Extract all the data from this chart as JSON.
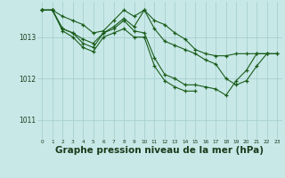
{
  "background_color": "#c8e8e8",
  "grid_color": "#a8d0d0",
  "line_color": "#1a5c1a",
  "xlabel": "Graphe pression niveau de la mer (hPa)",
  "xlabel_fontsize": 7.5,
  "ylim": [
    1010.55,
    1013.85
  ],
  "xlim": [
    -0.5,
    23.5
  ],
  "yticks": [
    1011,
    1012,
    1013
  ],
  "ytick_labels": [
    "1011",
    "1012",
    "1013"
  ],
  "xticks": [
    0,
    1,
    2,
    3,
    4,
    5,
    6,
    7,
    8,
    9,
    10,
    11,
    12,
    13,
    14,
    15,
    16,
    17,
    18,
    19,
    20,
    21,
    22,
    23
  ],
  "series": [
    {
      "x": [
        0,
        1,
        2,
        3,
        4,
        5,
        6,
        7,
        8,
        9,
        10,
        11,
        12,
        13,
        14,
        15,
        16,
        17,
        18,
        19,
        20,
        21,
        22,
        23
      ],
      "y": [
        1013.65,
        1013.65,
        1013.5,
        1013.4,
        1013.3,
        1013.1,
        1013.15,
        1013.4,
        1013.65,
        1013.5,
        1013.65,
        1013.4,
        1013.3,
        1013.1,
        1012.95,
        1012.7,
        1012.6,
        1012.55,
        1012.55,
        1012.6,
        1012.6,
        1012.6,
        1012.6,
        1012.6
      ]
    },
    {
      "x": [
        0,
        1,
        2,
        3,
        4,
        5,
        6,
        7,
        8,
        9,
        10,
        11,
        12,
        13,
        14,
        15,
        16,
        17,
        18,
        19,
        20,
        21,
        22,
        23
      ],
      "y": [
        1013.65,
        1013.65,
        1013.2,
        1013.1,
        1012.95,
        1012.85,
        1013.1,
        1013.25,
        1013.45,
        1013.25,
        1013.65,
        1013.2,
        1012.9,
        1012.8,
        1012.7,
        1012.6,
        1012.45,
        1012.35,
        1012.0,
        1011.85,
        1011.95,
        1012.3,
        1012.6,
        1012.6
      ]
    },
    {
      "x": [
        0,
        1,
        2,
        3,
        4,
        5,
        6,
        7,
        8,
        9,
        10,
        11,
        12,
        13,
        14,
        15,
        16,
        17,
        18,
        19,
        20,
        21,
        22
      ],
      "y": [
        1013.65,
        1013.65,
        1013.2,
        1013.1,
        1012.85,
        1012.75,
        1013.1,
        1013.2,
        1013.4,
        1013.15,
        1013.1,
        1012.5,
        1012.1,
        1012.0,
        1011.85,
        1011.85,
        1011.8,
        1011.75,
        1011.6,
        1011.95,
        1012.2,
        1012.6,
        1012.6
      ]
    },
    {
      "x": [
        0,
        1,
        2,
        3,
        4,
        5,
        6,
        7,
        8,
        9,
        10,
        11,
        12,
        13,
        14,
        15
      ],
      "y": [
        1013.65,
        1013.65,
        1013.15,
        1013.0,
        1012.75,
        1012.65,
        1013.0,
        1013.1,
        1013.2,
        1013.0,
        1013.0,
        1012.3,
        1011.95,
        1011.8,
        1011.7,
        1011.7
      ]
    }
  ]
}
